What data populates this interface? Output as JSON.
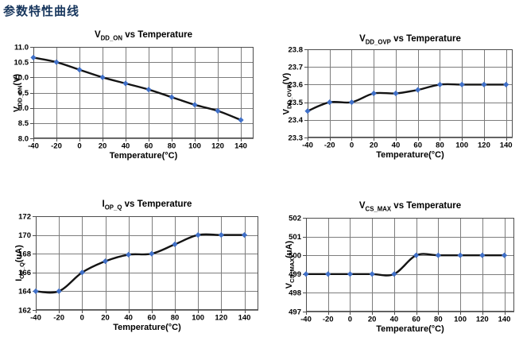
{
  "page": {
    "title": "参数特性曲线"
  },
  "colors": {
    "page_title": "#17365D",
    "chart_text": "#000000",
    "line": "#141414",
    "marker": "#4070C8",
    "grid": "#7D7D7D",
    "border": "#4D4D4D",
    "background": "#FFFFFF"
  },
  "chart_data": [
    {
      "type": "line",
      "title": {
        "base": "V",
        "sub": "DD_ON",
        "rest": " vs Temperature"
      },
      "ylabel": {
        "base": "V",
        "sub": "DD_ON",
        "rest": "(V)"
      },
      "xlabel": "Temperature(°C)",
      "x": [
        -40,
        -20,
        0,
        20,
        40,
        60,
        80,
        100,
        120,
        140
      ],
      "values": [
        10.65,
        10.5,
        10.25,
        10.0,
        9.8,
        9.6,
        9.35,
        9.1,
        8.9,
        8.6
      ],
      "xlim": [
        -40,
        140
      ],
      "ylim": [
        8.0,
        11.0
      ],
      "yticks": [
        "8.0",
        "8.5",
        "9.0",
        "9.5",
        "10.0",
        "10.5",
        "11.0"
      ],
      "xticks": [
        -40,
        -20,
        0,
        20,
        40,
        60,
        80,
        100,
        120,
        140
      ],
      "grid": true,
      "legend": "none",
      "smooth": true,
      "marker": "diamond"
    },
    {
      "type": "line",
      "title": {
        "base": "V",
        "sub": "DD_OVP",
        "rest": " vs Temperature"
      },
      "ylabel": {
        "base": "V",
        "sub": "DD_OVP",
        "rest": "(V)"
      },
      "xlabel": "Temperature(°C)",
      "x": [
        -40,
        -20,
        0,
        20,
        40,
        60,
        80,
        100,
        120,
        140
      ],
      "values": [
        23.45,
        23.5,
        23.5,
        23.55,
        23.55,
        23.57,
        23.6,
        23.6,
        23.6,
        23.6
      ],
      "xlim": [
        -40,
        140
      ],
      "ylim": [
        23.3,
        23.8
      ],
      "yticks": [
        "23.3",
        "23.4",
        "23.5",
        "23.6",
        "23.7",
        "23.8"
      ],
      "xticks": [
        -40,
        -20,
        0,
        20,
        40,
        60,
        80,
        100,
        120,
        140
      ],
      "grid": true,
      "legend": "none",
      "smooth": true,
      "marker": "diamond"
    },
    {
      "type": "line",
      "title": {
        "base": "I",
        "sub": "OP_Q",
        "rest": " vs Temperature"
      },
      "ylabel": {
        "base": "I",
        "sub": "OP_Q",
        "rest": "(uA)"
      },
      "xlabel": "Temperature(°C)",
      "x": [
        -40,
        -20,
        0,
        20,
        40,
        60,
        80,
        100,
        120,
        140
      ],
      "values": [
        164,
        164,
        166,
        167.2,
        167.9,
        168,
        169,
        170,
        170,
        170
      ],
      "xlim": [
        -40,
        140
      ],
      "ylim": [
        162,
        172
      ],
      "yticks": [
        "162",
        "164",
        "166",
        "168",
        "170",
        "172"
      ],
      "xticks": [
        -40,
        -20,
        0,
        20,
        40,
        60,
        80,
        100,
        120,
        140
      ],
      "grid": true,
      "legend": "none",
      "smooth": true,
      "marker": "diamond"
    },
    {
      "type": "line",
      "title": {
        "base": "V",
        "sub": "CS_MAX",
        "rest": " vs Temperature"
      },
      "ylabel": {
        "base": "V",
        "sub": "CS_MAX",
        "rest": "(uA)"
      },
      "xlabel": "Temperature(°C)",
      "x": [
        -40,
        -20,
        0,
        20,
        40,
        60,
        80,
        100,
        120,
        140
      ],
      "values": [
        499,
        499,
        499,
        499,
        499,
        500,
        500,
        500,
        500,
        500
      ],
      "xlim": [
        -40,
        140
      ],
      "ylim": [
        497,
        502
      ],
      "yticks": [
        "497",
        "498",
        "499",
        "500",
        "501",
        "502"
      ],
      "xticks": [
        -40,
        -20,
        0,
        20,
        40,
        60,
        80,
        100,
        120,
        140
      ],
      "grid": true,
      "legend": "none",
      "smooth": true,
      "marker": "diamond"
    }
  ]
}
